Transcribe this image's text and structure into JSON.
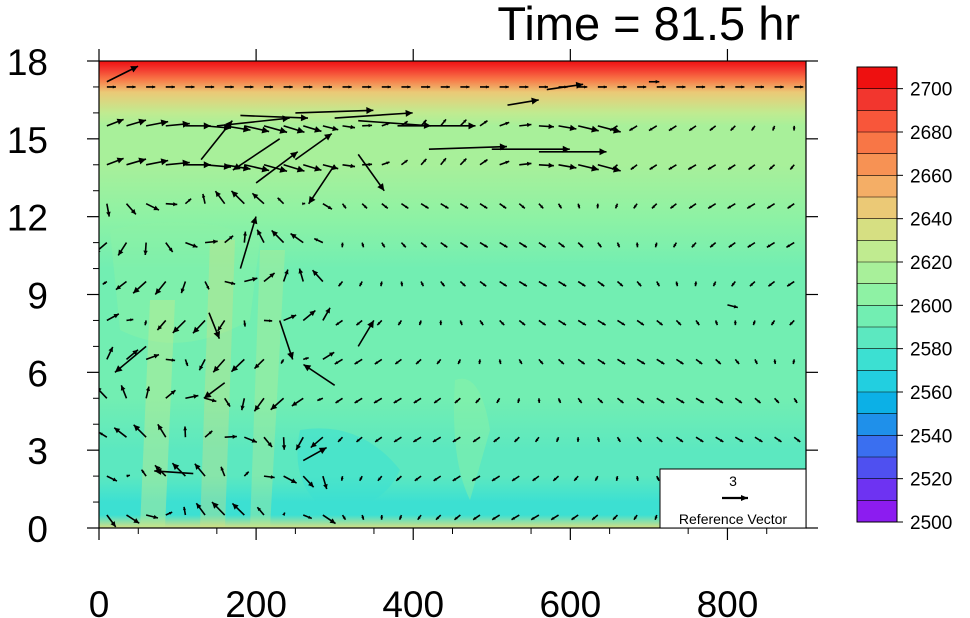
{
  "chart_data": {
    "type": "heatmap",
    "title": "Time = 81.5 hr",
    "xlabel": "",
    "ylabel": "",
    "xlim": [
      0,
      900
    ],
    "ylim": [
      0,
      18
    ],
    "x_ticks": [
      0,
      200,
      400,
      600,
      800
    ],
    "y_ticks": [
      0,
      3,
      6,
      9,
      12,
      15,
      18
    ],
    "grid": false,
    "colorbar": {
      "levels": [
        2500,
        2510,
        2520,
        2530,
        2540,
        2550,
        2560,
        2570,
        2580,
        2590,
        2600,
        2610,
        2620,
        2630,
        2640,
        2650,
        2660,
        2670,
        2680,
        2690,
        2700
      ],
      "labels": [
        "2700",
        "2680",
        "2660",
        "2640",
        "2620",
        "2600",
        "2580",
        "2560",
        "2540",
        "2520",
        "2500"
      ],
      "colors": [
        "#8c1cf0",
        "#6e33f2",
        "#4f50f0",
        "#3a6ff0",
        "#1f90ea",
        "#0cb0e6",
        "#22cfe0",
        "#3ce0d2",
        "#5ce8c0",
        "#72eeb2",
        "#8ef2a4",
        "#a8f09a",
        "#c0eb90",
        "#d6df82",
        "#ebc976",
        "#f4ae66",
        "#f79254",
        "#f87646",
        "#f8563a",
        "#f2362e",
        "#ee1010"
      ]
    },
    "field_profile": {
      "z": [
        0,
        0.5,
        1,
        2,
        3,
        5,
        8,
        10,
        12,
        14,
        15.5,
        16,
        16.8,
        17.3,
        17.7,
        18
      ],
      "value": [
        2636,
        2575,
        2578,
        2582,
        2585,
        2590,
        2592,
        2596,
        2604,
        2610,
        2616,
        2624,
        2640,
        2670,
        2692,
        2705
      ]
    },
    "reference_vector": {
      "magnitude": "3",
      "label": "Reference Vector"
    },
    "vectors_sample": [
      {
        "x": 150,
        "y": 15.5,
        "u": 2.8,
        "v": 0.3
      },
      {
        "x": 300,
        "y": 15.8,
        "u": 3.0,
        "v": 0.2
      },
      {
        "x": 500,
        "y": 14.6,
        "u": 3.0,
        "v": 0.0
      },
      {
        "x": 300,
        "y": 14.0,
        "u": -1.0,
        "v": -1.5
      },
      {
        "x": 60,
        "y": 7.0,
        "u": -1.2,
        "v": -1.0
      },
      {
        "x": 300,
        "y": 5.5,
        "u": -1.2,
        "v": 0.8
      },
      {
        "x": 10,
        "y": 17.2,
        "u": 1.2,
        "v": 0.6
      },
      {
        "x": 700,
        "y": 17.2,
        "u": 0.4,
        "v": 0.0
      },
      {
        "x": 800,
        "y": 8.6,
        "u": 0.4,
        "v": -0.1
      }
    ]
  }
}
